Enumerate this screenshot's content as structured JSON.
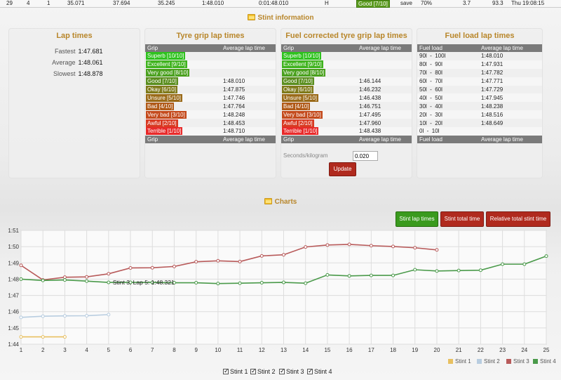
{
  "top_row": {
    "col1": "29",
    "col2": "4",
    "col3": "1",
    "col4": "35.071",
    "col5": "37.694",
    "col6": "35.245",
    "col7": "1:48.010",
    "col8": "0:01:48.010",
    "col9": "H",
    "grip": "Good [7/10]",
    "grip_color": "#5a9a1e",
    "mode": "save",
    "percent": "70%",
    "col13": "3.7",
    "col14": "93.3",
    "time": "Thu 19:08:15"
  },
  "stint_info": {
    "title": "Stint information",
    "icon": "folder-icon"
  },
  "lap_times": {
    "title": "Lap times",
    "rows": [
      {
        "label": "Fastest",
        "value": "1:47.681"
      },
      {
        "label": "Average",
        "value": "1:48.061"
      },
      {
        "label": "Slowest",
        "value": "1:48.878"
      }
    ]
  },
  "tyre_grip": {
    "title": "Tyre grip lap times",
    "header": [
      "Grip",
      "Average lap time"
    ],
    "footer": [
      "Grip",
      "Average lap time"
    ],
    "rows": [
      {
        "grip": "Superb [10/10]",
        "color": "#2ec21e",
        "time": ""
      },
      {
        "grip": "Excellent [9/10]",
        "color": "#3fb31e",
        "time": ""
      },
      {
        "grip": "Very good [8/10]",
        "color": "#4aa01e",
        "time": ""
      },
      {
        "grip": "Good [7/10]",
        "color": "#5a8e1e",
        "time": "1:48.010"
      },
      {
        "grip": "Okay [6/10]",
        "color": "#7f7a1a",
        "time": "1:47.875"
      },
      {
        "grip": "Unsure [5/10]",
        "color": "#9a6a18",
        "time": "1:47.746"
      },
      {
        "grip": "Bad [4/10]",
        "color": "#b05a18",
        "time": "1:47.764"
      },
      {
        "grip": "Very bad [3/10]",
        "color": "#c44a1c",
        "time": "1:48.248"
      },
      {
        "grip": "Awful [2/10]",
        "color": "#d83a22",
        "time": "1:48.453"
      },
      {
        "grip": "Terrible [1/10]",
        "color": "#e82a2a",
        "time": "1:48.710"
      }
    ]
  },
  "fuel_corrected": {
    "title": "Fuel corrected tyre grip lap times",
    "header": [
      "Grip",
      "Average lap time"
    ],
    "footer": [
      "Grip",
      "Average lap time"
    ],
    "rows": [
      {
        "grip": "Superb [10/10]",
        "color": "#2ec21e",
        "time": ""
      },
      {
        "grip": "Excellent [9/10]",
        "color": "#3fb31e",
        "time": ""
      },
      {
        "grip": "Very good [8/10]",
        "color": "#4aa01e",
        "time": ""
      },
      {
        "grip": "Good [7/10]",
        "color": "#5a8e1e",
        "time": "1:46.144"
      },
      {
        "grip": "Okay [6/10]",
        "color": "#7f7a1a",
        "time": "1:46.232"
      },
      {
        "grip": "Unsure [5/10]",
        "color": "#9a6a18",
        "time": "1:46.438"
      },
      {
        "grip": "Bad [4/10]",
        "color": "#b05a18",
        "time": "1:46.751"
      },
      {
        "grip": "Very bad [3/10]",
        "color": "#c44a1c",
        "time": "1:47.495"
      },
      {
        "grip": "Awful [2/10]",
        "color": "#d83a22",
        "time": "1:47.960"
      },
      {
        "grip": "Terrible [1/10]",
        "color": "#e82a2a",
        "time": "1:48.438"
      }
    ],
    "seconds_label": "Seconds/kilogram",
    "seconds_value": "0.020",
    "update_button": "Update"
  },
  "fuel_load": {
    "title": "Fuel load lap times",
    "header": [
      "Fuel load",
      "Average lap time"
    ],
    "footer": [
      "Fuel load",
      "Average lap time"
    ],
    "rows": [
      {
        "load": "90l  -  100l",
        "time": "1:48.010"
      },
      {
        "load": "80l  -  90l",
        "time": "1:47.931"
      },
      {
        "load": "70l  -  80l",
        "time": "1:47.782"
      },
      {
        "load": "60l  -  70l",
        "time": "1:47.771"
      },
      {
        "load": "50l  -  60l",
        "time": "1:47.729"
      },
      {
        "load": "40l  -  50l",
        "time": "1:47.945"
      },
      {
        "load": "30l  -  40l",
        "time": "1:48.238"
      },
      {
        "load": "20l  -  30l",
        "time": "1:48.516"
      },
      {
        "load": "10l  -  20l",
        "time": "1:48.649"
      },
      {
        "load": "0l  -  10l",
        "time": ""
      }
    ]
  },
  "charts_section": {
    "title": "Charts",
    "icon": "folder-icon"
  },
  "chart_buttons": {
    "stint_lap_times": "Stint lap times",
    "stint_total_time": "Stint total time",
    "relative_total": "Relative total stint time"
  },
  "stint_checks": [
    "Stint 1",
    "Stint 2",
    "Stint 3",
    "Stint 4"
  ],
  "chart_data": {
    "type": "line",
    "x_ticks": [
      1,
      2,
      3,
      4,
      5,
      6,
      7,
      8,
      9,
      10,
      11,
      12,
      13,
      14,
      15,
      16,
      17,
      18,
      19,
      20,
      21,
      22,
      23,
      24,
      25
    ],
    "y_ticks": [
      "1:44",
      "1:45",
      "1:46",
      "1:47",
      "1:48",
      "1:49",
      "1:50",
      "1:51"
    ],
    "ylim": [
      104,
      111
    ],
    "xlim": [
      1,
      25
    ],
    "grid": true,
    "legend_position": "bottom-right",
    "tooltip": {
      "text": "Stint 3, Lap 5: 1:48.321"
    },
    "series": [
      {
        "name": "Stint 1",
        "color": "#e8c060",
        "x": [
          1,
          2,
          3
        ],
        "y": [
          104.45,
          104.45,
          104.45
        ]
      },
      {
        "name": "Stint 2",
        "color": "#b8cde0",
        "x": [
          1,
          2,
          3,
          4,
          5
        ],
        "y": [
          105.65,
          105.72,
          105.74,
          105.75,
          105.82
        ]
      },
      {
        "name": "Stint 3",
        "color": "#b85a5a",
        "x": [
          1,
          2,
          3,
          4,
          5,
          6,
          7,
          8,
          9,
          10,
          11,
          12,
          13,
          14,
          15,
          16,
          17,
          18,
          19,
          20
        ],
        "y": [
          108.85,
          107.95,
          108.12,
          108.14,
          108.33,
          108.69,
          108.7,
          108.78,
          109.07,
          109.13,
          109.08,
          109.43,
          109.5,
          109.98,
          110.1,
          110.14,
          110.06,
          110.01,
          109.93,
          109.8
        ]
      },
      {
        "name": "Stint 4",
        "color": "#4a9a4a",
        "x": [
          1,
          2,
          3,
          4,
          5,
          6,
          7,
          8,
          9,
          10,
          11,
          12,
          13,
          14,
          15,
          16,
          17,
          18,
          19,
          20,
          21,
          22,
          23,
          24,
          25
        ],
        "y": [
          108.0,
          107.92,
          107.95,
          107.88,
          107.8,
          107.8,
          107.8,
          107.78,
          107.78,
          107.73,
          107.75,
          107.78,
          107.8,
          107.75,
          108.26,
          108.2,
          108.23,
          108.23,
          108.58,
          108.5,
          108.53,
          108.55,
          108.92,
          108.92,
          109.42
        ]
      }
    ]
  }
}
